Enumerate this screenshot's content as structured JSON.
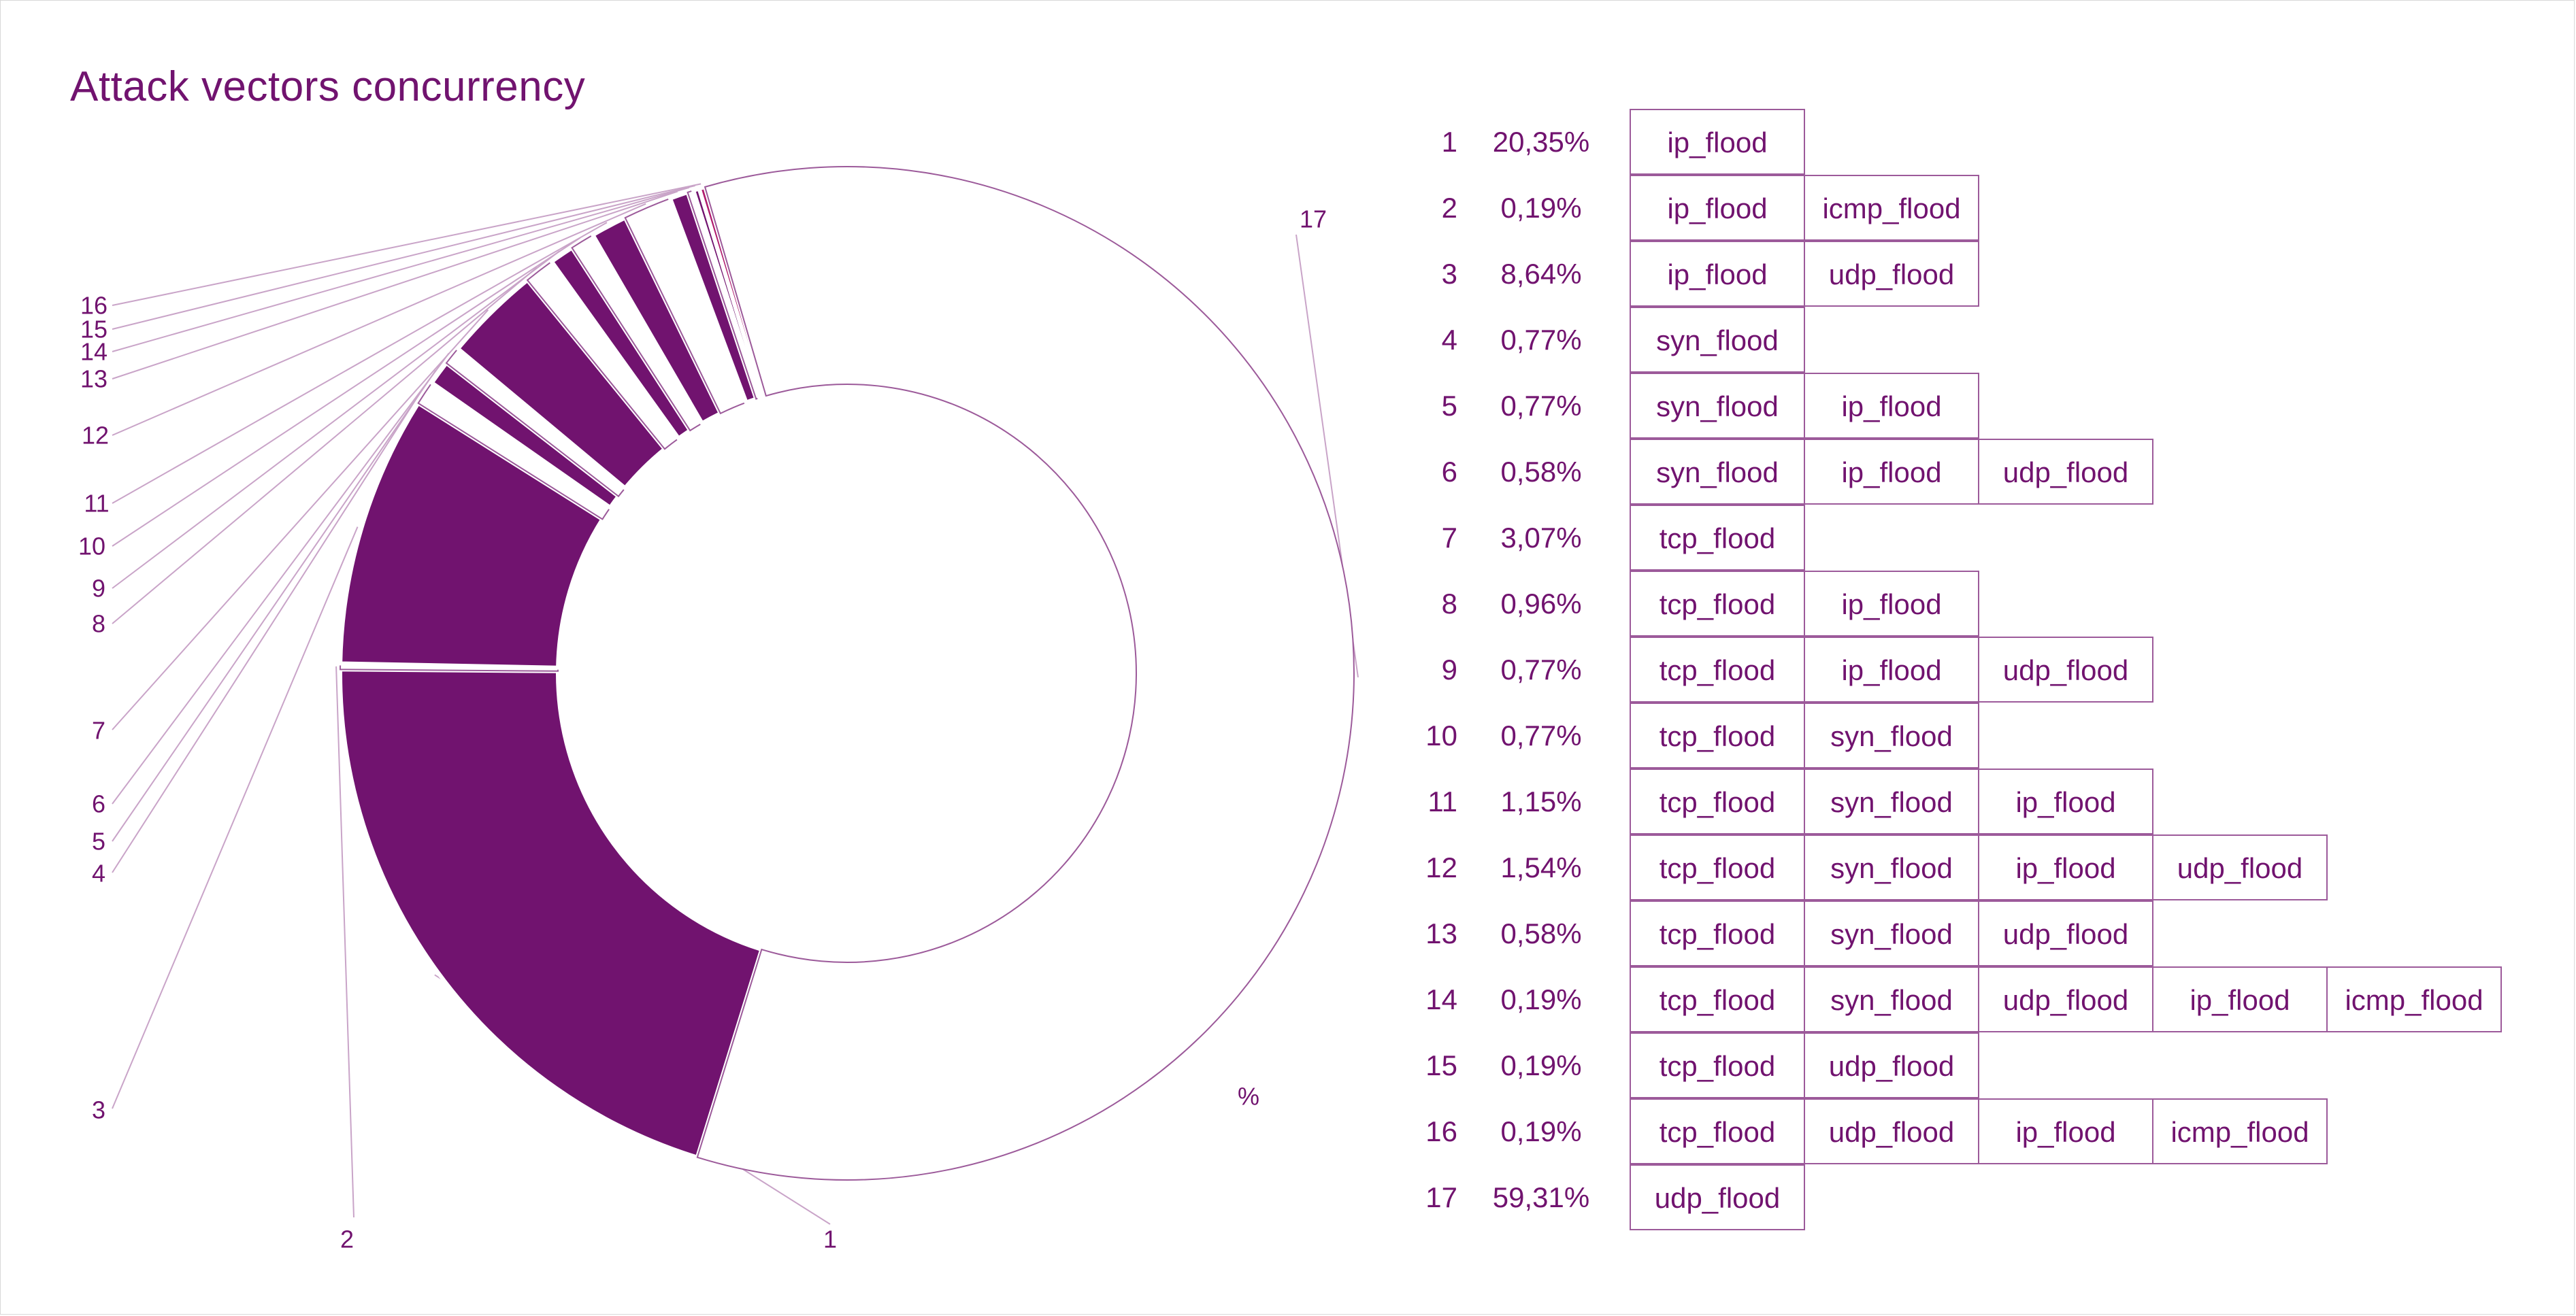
{
  "title": "Attack vectors concurrency",
  "colors": {
    "accent": "#71136f",
    "outline": "#9c5a9a",
    "leader": "#c9a4c8",
    "highlight": "#b01c6e"
  },
  "chart_data": {
    "type": "pie",
    "donut": true,
    "title": "Attack vectors concurrency",
    "unit_label": "%",
    "slices": [
      {
        "label": "1",
        "value": 20.35,
        "value_label": "20,35%",
        "vectors": [
          "ip_flood"
        ],
        "filled": true
      },
      {
        "label": "2",
        "value": 0.19,
        "value_label": "0,19%",
        "vectors": [
          "ip_flood",
          "icmp_flood"
        ],
        "filled": false
      },
      {
        "label": "3",
        "value": 8.64,
        "value_label": "8,64%",
        "vectors": [
          "ip_flood",
          "udp_flood"
        ],
        "filled": true
      },
      {
        "label": "4",
        "value": 0.77,
        "value_label": "0,77%",
        "vectors": [
          "syn_flood"
        ],
        "filled": false
      },
      {
        "label": "5",
        "value": 0.77,
        "value_label": "0,77%",
        "vectors": [
          "syn_flood",
          "ip_flood"
        ],
        "filled": true
      },
      {
        "label": "6",
        "value": 0.58,
        "value_label": "0,58%",
        "vectors": [
          "syn_flood",
          "ip_flood",
          "udp_flood"
        ],
        "filled": false
      },
      {
        "label": "7",
        "value": 3.07,
        "value_label": "3,07%",
        "vectors": [
          "tcp_flood"
        ],
        "filled": true
      },
      {
        "label": "8",
        "value": 0.96,
        "value_label": "0,96%",
        "vectors": [
          "tcp_flood",
          "ip_flood"
        ],
        "filled": false
      },
      {
        "label": "9",
        "value": 0.77,
        "value_label": "0,77%",
        "vectors": [
          "tcp_flood",
          "ip_flood",
          "udp_flood"
        ],
        "filled": true
      },
      {
        "label": "10",
        "value": 0.77,
        "value_label": "0,77%",
        "vectors": [
          "tcp_flood",
          "syn_flood"
        ],
        "filled": false
      },
      {
        "label": "11",
        "value": 1.15,
        "value_label": "1,15%",
        "vectors": [
          "tcp_flood",
          "syn_flood",
          "ip_flood"
        ],
        "filled": true
      },
      {
        "label": "12",
        "value": 1.54,
        "value_label": "1,54%",
        "vectors": [
          "tcp_flood",
          "syn_flood",
          "ip_flood",
          "udp_flood"
        ],
        "filled": false
      },
      {
        "label": "13",
        "value": 0.58,
        "value_label": "0,58%",
        "vectors": [
          "tcp_flood",
          "syn_flood",
          "udp_flood"
        ],
        "filled": true
      },
      {
        "label": "14",
        "value": 0.19,
        "value_label": "0,19%",
        "vectors": [
          "tcp_flood",
          "syn_flood",
          "udp_flood",
          "ip_flood",
          "icmp_flood"
        ],
        "filled": false
      },
      {
        "label": "15",
        "value": 0.19,
        "value_label": "0,19%",
        "vectors": [
          "tcp_flood",
          "udp_flood"
        ],
        "filled": true
      },
      {
        "label": "16",
        "value": 0.19,
        "value_label": "0,19%",
        "vectors": [
          "tcp_flood",
          "udp_flood",
          "ip_flood",
          "icmp_flood"
        ],
        "filled": true
      },
      {
        "label": "17",
        "value": 59.31,
        "value_label": "59,31%",
        "vectors": [
          "udp_flood"
        ],
        "filled": false
      }
    ]
  }
}
